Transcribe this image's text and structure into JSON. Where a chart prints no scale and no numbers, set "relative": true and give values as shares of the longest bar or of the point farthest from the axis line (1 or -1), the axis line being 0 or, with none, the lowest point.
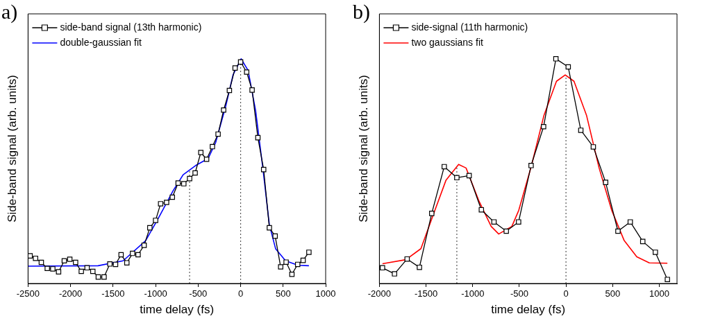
{
  "chart_data": [
    {
      "type": "line",
      "title": "a)",
      "xlabel": "time delay (fs)",
      "ylabel": "Side-band signal (arb. units)",
      "relative": true,
      "xlim": [
        -2500,
        1000
      ],
      "xticks": [
        -2500,
        -2000,
        -1500,
        -1000,
        -500,
        0,
        500,
        1000
      ],
      "legend": "top left",
      "grid": false,
      "series": [
        {
          "name": "side-band signal (13th harmonic)",
          "color": "#000000",
          "marker": "square",
          "x": [
            -2476,
            -2412,
            -2344,
            -2274,
            -2209,
            -2141,
            -2074,
            -2009,
            -1941,
            -1874,
            -1806,
            -1738,
            -1674,
            -1606,
            -1538,
            -1471,
            -1406,
            -1338,
            -1271,
            -1206,
            -1135,
            -1068,
            -1000,
            -941,
            -871,
            -803,
            -735,
            -668,
            -600,
            -535,
            -468,
            -400,
            -332,
            -265,
            -200,
            -132,
            -65,
            0,
            71,
            135,
            203,
            271,
            338,
            406,
            471,
            535,
            603,
            671,
            735,
            803
          ],
          "values": [
            0.123,
            0.112,
            0.094,
            0.067,
            0.065,
            0.052,
            0.101,
            0.108,
            0.094,
            0.054,
            0.07,
            0.054,
            0.029,
            0.029,
            0.087,
            0.085,
            0.128,
            0.092,
            0.134,
            0.128,
            0.17,
            0.248,
            0.281,
            0.355,
            0.361,
            0.384,
            0.447,
            0.444,
            0.467,
            0.492,
            0.583,
            0.553,
            0.609,
            0.665,
            0.772,
            0.859,
            0.959,
            0.986,
            0.941,
            0.861,
            0.649,
            0.507,
            0.248,
            0.211,
            0.074,
            0.095,
            0.041,
            0.085,
            0.103,
            0.139
          ]
        },
        {
          "name": "double-gaussian fit",
          "color": "#0000ff",
          "marker": "none",
          "x": [
            -2500,
            -1676,
            -1382,
            -1118,
            -971,
            -794,
            -676,
            -529,
            -382,
            -294,
            -176,
            -88,
            6,
            88,
            176,
            265,
            338,
            412,
            529,
            676,
            803
          ],
          "values": [
            0.077,
            0.079,
            0.101,
            0.19,
            0.288,
            0.413,
            0.484,
            0.525,
            0.556,
            0.627,
            0.788,
            0.93,
            1.0,
            0.948,
            0.77,
            0.502,
            0.261,
            0.154,
            0.101,
            0.081,
            0.079
          ]
        }
      ],
      "ref_lines": [
        {
          "axis": "x",
          "value": -600,
          "color": "#555555",
          "line_style": "dotted"
        },
        {
          "axis": "x",
          "value": 0,
          "color": "#555555",
          "line_style": "dotted"
        }
      ]
    },
    {
      "type": "line",
      "title": "b)",
      "xlabel": "time delay (fs)",
      "ylabel": "Side-band signal (arb. units)",
      "relative": true,
      "xlim": [
        -2000,
        1190
      ],
      "xticks": [
        -2000,
        -1500,
        -1000,
        -500,
        0,
        500,
        1000
      ],
      "legend": "top left",
      "grid": false,
      "series": [
        {
          "name": "side-signal (11th harmonic)",
          "color": "#000000",
          "marker": "square",
          "x": [
            -1967,
            -1838,
            -1703,
            -1571,
            -1439,
            -1305,
            -1170,
            -1038,
            -907,
            -772,
            -640,
            -508,
            -374,
            -240,
            -108,
            24,
            159,
            293,
            425,
            557,
            689,
            823,
            958,
            1087
          ],
          "values": [
            0.07,
            0.043,
            0.109,
            0.072,
            0.312,
            0.52,
            0.471,
            0.48,
            0.328,
            0.274,
            0.233,
            0.274,
            0.525,
            0.698,
            1.0,
            0.964,
            0.682,
            0.608,
            0.45,
            0.233,
            0.274,
            0.187,
            0.139,
            0.018
          ]
        },
        {
          "name": "two gaussians fit",
          "color": "#ff0000",
          "marker": "none",
          "x": [
            -1967,
            -1716,
            -1555,
            -1421,
            -1286,
            -1151,
            -1071,
            -936,
            -802,
            -721,
            -580,
            -506,
            -371,
            -237,
            -102,
            -8,
            86,
            221,
            355,
            490,
            624,
            759,
            893,
            1087
          ],
          "values": [
            0.088,
            0.106,
            0.155,
            0.308,
            0.46,
            0.53,
            0.514,
            0.37,
            0.254,
            0.22,
            0.254,
            0.326,
            0.523,
            0.747,
            0.9,
            0.928,
            0.9,
            0.747,
            0.514,
            0.326,
            0.191,
            0.119,
            0.092,
            0.09
          ]
        }
      ],
      "ref_lines": [
        {
          "axis": "x",
          "value": -1170,
          "color": "#555555",
          "line_style": "dotted"
        },
        {
          "axis": "x",
          "value": 0,
          "color": "#555555",
          "line_style": "dotted"
        }
      ]
    }
  ]
}
